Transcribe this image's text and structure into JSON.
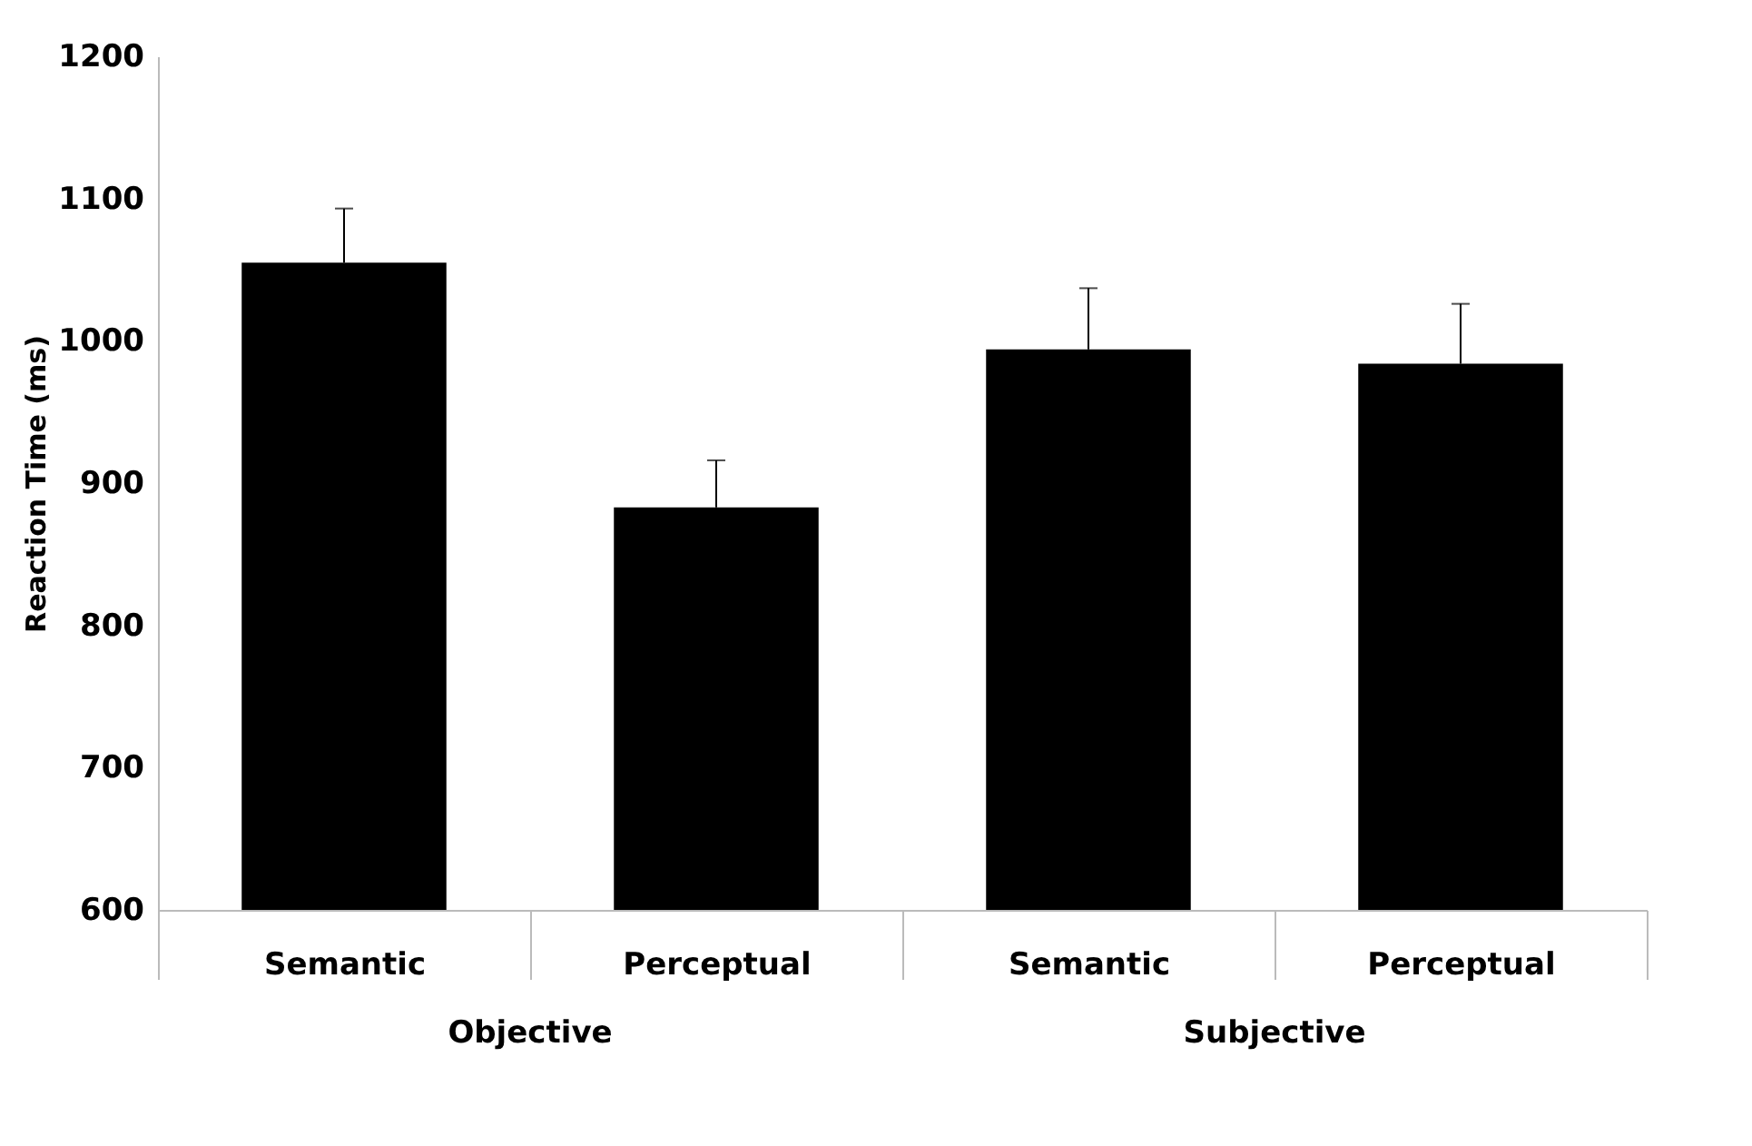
{
  "chart_data": {
    "type": "bar",
    "ylabel": "Reaction Time (ms)",
    "categories": [
      "Semantic",
      "Perceptual",
      "Semantic",
      "Perceptual"
    ],
    "values": [
      1055,
      883,
      994,
      984
    ],
    "color": "#000000",
    "errors": [
      [
        1055,
        1093
      ],
      [
        883,
        916
      ],
      [
        994,
        1037
      ],
      [
        984,
        1026
      ]
    ],
    "ylim": [
      600,
      1200
    ],
    "yticks": [
      600,
      700,
      800,
      900,
      1000,
      1100,
      1200
    ],
    "grid": false,
    "annotations": [
      "Objective",
      "Subjective"
    ]
  }
}
